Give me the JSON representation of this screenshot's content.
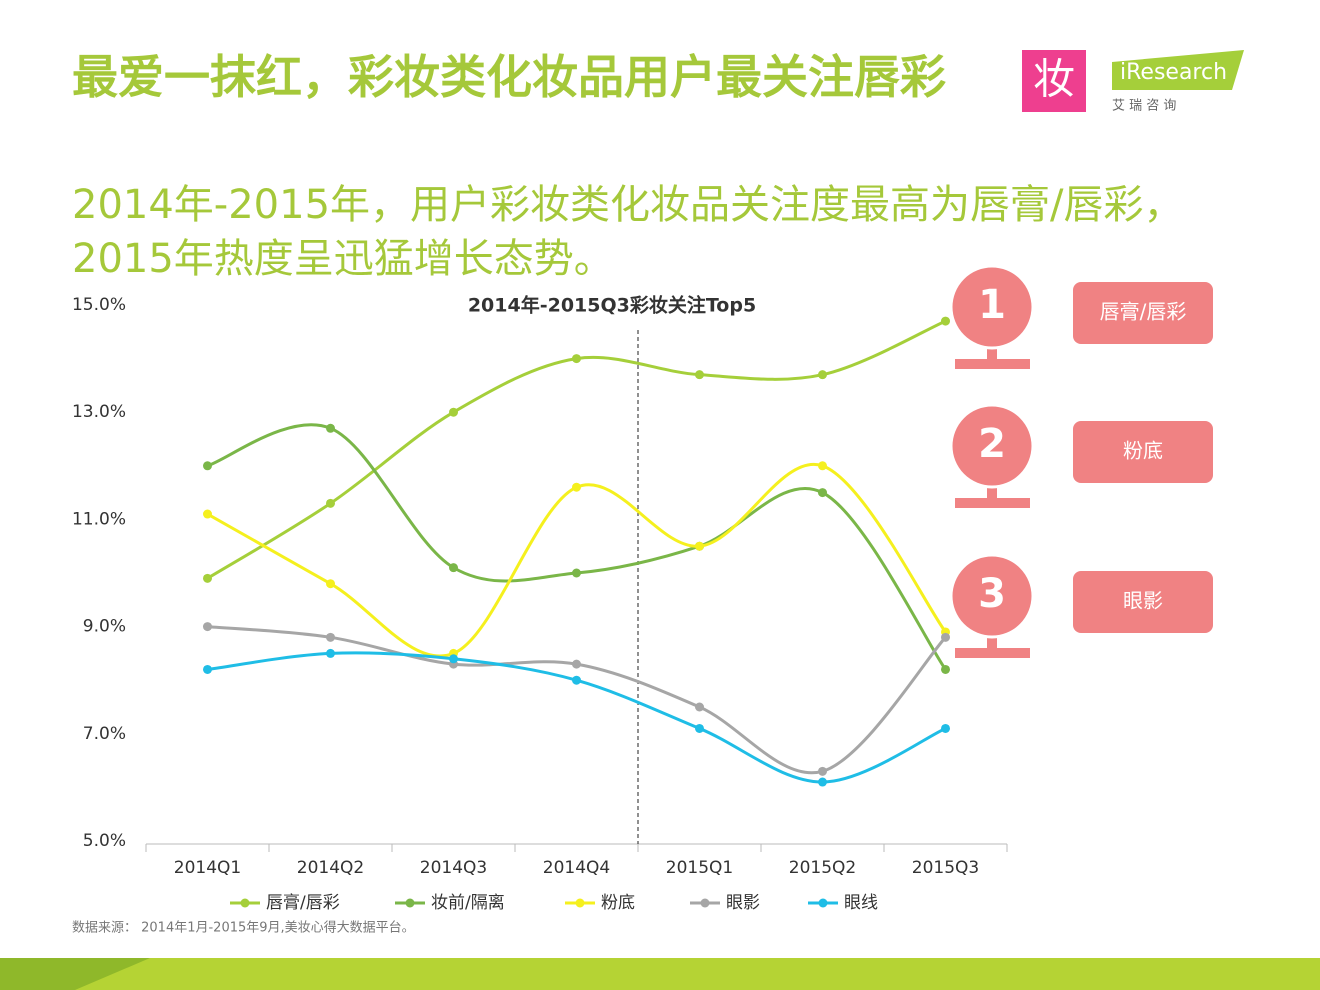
{
  "header": {
    "title": "最爱一抹红，彩妆类化妆品用户最关注唇彩",
    "subtitle": "2014年-2015年，用户彩妆类化妆品关注度最高为唇膏/唇彩，2015年热度呈迅猛增长态势。"
  },
  "logo": {
    "mark": "妆",
    "brand": "iResearch",
    "brand_cn": "艾 瑞 咨 询"
  },
  "rankings": [
    {
      "rank": "1",
      "label": "唇膏/唇彩"
    },
    {
      "rank": "2",
      "label": "粉底"
    },
    {
      "rank": "3",
      "label": "眼影"
    }
  ],
  "source": "数据来源： 2014年1月-2015年9月,美妆心得大数据平台。",
  "chart_data": {
    "type": "line",
    "title": "2014年-2015Q3彩妆关注Top5",
    "smooth": true,
    "categories": [
      "2014Q1",
      "2014Q2",
      "2014Q3",
      "2014Q4",
      "2015Q1",
      "2015Q2",
      "2015Q3"
    ],
    "ylim": [
      5,
      15
    ],
    "yticks": [
      {
        "value": 5,
        "label": "5.0%"
      },
      {
        "value": 7,
        "label": "7.0%"
      },
      {
        "value": 9,
        "label": "9.0%"
      },
      {
        "value": 11,
        "label": "11.0%"
      },
      {
        "value": 13,
        "label": "13.0%"
      },
      {
        "value": 15,
        "label": "15.0%"
      }
    ],
    "series": [
      {
        "name": "唇膏/唇彩",
        "color": "#a5cf3a",
        "values": [
          9.9,
          11.3,
          13.0,
          14.0,
          13.7,
          13.7,
          14.7
        ]
      },
      {
        "name": "妆前/隔离",
        "color": "#7ab648",
        "values": [
          12.0,
          12.7,
          10.1,
          10.0,
          10.5,
          11.5,
          8.2
        ]
      },
      {
        "name": "粉底",
        "color": "#f5f01e",
        "values": [
          11.1,
          9.8,
          8.5,
          11.6,
          10.5,
          12.0,
          8.9
        ]
      },
      {
        "name": "眼影",
        "color": "#a6a6a6",
        "values": [
          9.0,
          8.8,
          8.3,
          8.3,
          7.5,
          6.3,
          8.8
        ]
      },
      {
        "name": "眼线",
        "color": "#1fbde6",
        "values": [
          8.2,
          8.5,
          8.4,
          8.0,
          7.1,
          6.1,
          7.1
        ]
      }
    ]
  }
}
